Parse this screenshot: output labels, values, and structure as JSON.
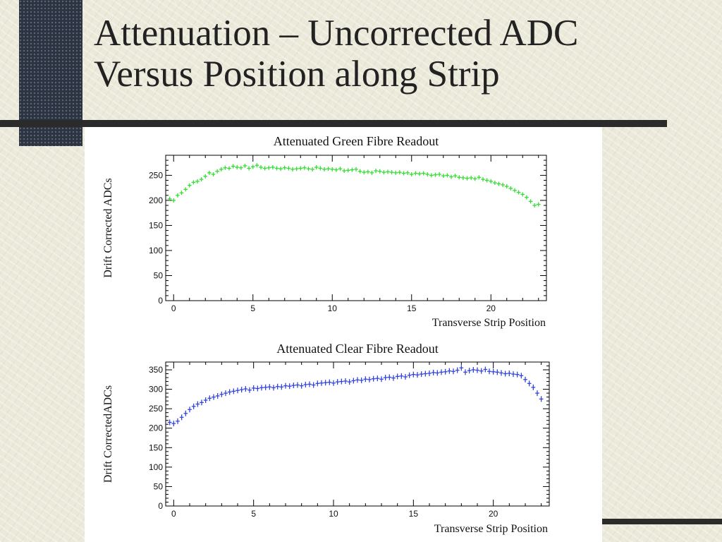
{
  "slide": {
    "title_line1": "Attenuation – Uncorrected ADC",
    "title_line2": "Versus Position along Strip"
  },
  "colors": {
    "green_series": "#33dd33",
    "blue_series": "#3344dd",
    "dark_block": "#2c3442",
    "rule": "#2b2b2b"
  },
  "chart_data": [
    {
      "type": "scatter",
      "title": "Attenuated Green Fibre Readout",
      "xlabel": "Transverse Strip Position",
      "ylabel": "Drift Corrected ADCs",
      "xlim": [
        -0.5,
        23.5
      ],
      "ylim": [
        0,
        290
      ],
      "xticks": [
        "0",
        "5",
        "10",
        "15",
        "20"
      ],
      "yticks": [
        "0",
        "50",
        "100",
        "150",
        "200",
        "250"
      ],
      "color": "#33dd33",
      "marker": "error-cross",
      "grid": false,
      "series": [
        {
          "x": [
            -0.25,
            0,
            0.25,
            0.5,
            0.75,
            1,
            1.25,
            1.5,
            1.75,
            2,
            2.25,
            2.5,
            2.75,
            3,
            3.25,
            3.5,
            3.75,
            4,
            4.25,
            4.5,
            4.75,
            5,
            5.25,
            5.5,
            5.75,
            6,
            6.25,
            6.5,
            6.75,
            7,
            7.25,
            7.5,
            7.75,
            8,
            8.25,
            8.5,
            8.75,
            9,
            9.25,
            9.5,
            9.75,
            10,
            10.25,
            10.5,
            10.75,
            11,
            11.25,
            11.5,
            11.75,
            12,
            12.25,
            12.5,
            12.75,
            13,
            13.25,
            13.5,
            13.75,
            14,
            14.25,
            14.5,
            14.75,
            15,
            15.25,
            15.5,
            15.75,
            16,
            16.25,
            16.5,
            16.75,
            17,
            17.25,
            17.5,
            17.75,
            18,
            18.25,
            18.5,
            18.75,
            19,
            19.25,
            19.5,
            19.75,
            20,
            20.25,
            20.5,
            20.75,
            21,
            21.25,
            21.5,
            21.75,
            22,
            22.25,
            22.5,
            22.75,
            23
          ],
          "y": [
            203,
            200,
            210,
            215,
            222,
            230,
            236,
            238,
            242,
            248,
            255,
            252,
            258,
            262,
            265,
            264,
            268,
            266,
            265,
            269,
            264,
            267,
            270,
            266,
            264,
            265,
            266,
            264,
            263,
            265,
            264,
            262,
            263,
            264,
            265,
            263,
            262,
            266,
            264,
            262,
            263,
            262,
            261,
            263,
            259,
            260,
            261,
            262,
            258,
            256,
            257,
            255,
            259,
            258,
            256,
            257,
            256,
            255,
            256,
            254,
            255,
            252,
            254,
            253,
            254,
            252,
            250,
            251,
            252,
            249,
            250,
            247,
            249,
            246,
            245,
            244,
            245,
            243,
            246,
            242,
            240,
            238,
            235,
            233,
            231,
            228,
            224,
            220,
            216,
            212,
            206,
            198,
            190,
            192
          ]
        }
      ]
    },
    {
      "type": "scatter",
      "title": "Attenuated Clear Fibre Readout",
      "xlabel": "Transverse Strip Position",
      "ylabel": "Drift CorrectedADCs",
      "xlim": [
        -0.5,
        23.5
      ],
      "ylim": [
        0,
        370
      ],
      "xticks": [
        "0",
        "5",
        "10",
        "15",
        "20"
      ],
      "yticks": [
        "0",
        "50",
        "100",
        "150",
        "200",
        "250",
        "300",
        "350"
      ],
      "color": "#3344dd",
      "marker": "error-cross",
      "grid": false,
      "series": [
        {
          "x": [
            -0.25,
            0,
            0.25,
            0.5,
            0.75,
            1,
            1.25,
            1.5,
            1.75,
            2,
            2.25,
            2.5,
            2.75,
            3,
            3.25,
            3.5,
            3.75,
            4,
            4.25,
            4.5,
            4.75,
            5,
            5.25,
            5.5,
            5.75,
            6,
            6.25,
            6.5,
            6.75,
            7,
            7.25,
            7.5,
            7.75,
            8,
            8.25,
            8.5,
            8.75,
            9,
            9.25,
            9.5,
            9.75,
            10,
            10.25,
            10.5,
            10.75,
            11,
            11.25,
            11.5,
            11.75,
            12,
            12.25,
            12.5,
            12.75,
            13,
            13.25,
            13.5,
            13.75,
            14,
            14.25,
            14.5,
            14.75,
            15,
            15.25,
            15.5,
            15.75,
            16,
            16.25,
            16.5,
            16.75,
            17,
            17.25,
            17.5,
            17.75,
            18,
            18.25,
            18.5,
            18.75,
            19,
            19.25,
            19.5,
            19.75,
            20,
            20.25,
            20.5,
            20.75,
            21,
            21.25,
            21.5,
            21.75,
            22,
            22.25,
            22.5,
            22.75,
            23
          ],
          "y": [
            215,
            212,
            218,
            228,
            238,
            248,
            256,
            262,
            266,
            272,
            277,
            280,
            283,
            287,
            290,
            293,
            295,
            297,
            299,
            301,
            298,
            303,
            302,
            304,
            305,
            306,
            304,
            307,
            306,
            309,
            308,
            310,
            311,
            309,
            312,
            313,
            311,
            315,
            316,
            317,
            318,
            316,
            319,
            320,
            321,
            319,
            322,
            324,
            323,
            326,
            325,
            327,
            328,
            326,
            330,
            331,
            329,
            333,
            334,
            332,
            336,
            338,
            337,
            339,
            340,
            341,
            343,
            342,
            344,
            345,
            347,
            346,
            349,
            355,
            344,
            348,
            350,
            349,
            347,
            351,
            346,
            345,
            344,
            342,
            340,
            341,
            339,
            338,
            335,
            325,
            315,
            305,
            290,
            275
          ]
        }
      ]
    }
  ]
}
